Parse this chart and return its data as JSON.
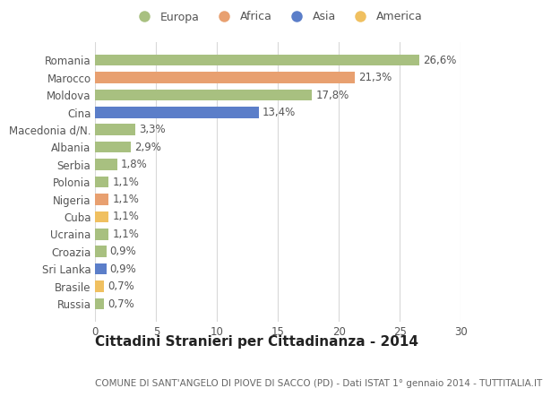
{
  "categories": [
    "Russia",
    "Brasile",
    "Sri Lanka",
    "Croazia",
    "Ucraina",
    "Cuba",
    "Nigeria",
    "Polonia",
    "Serbia",
    "Albania",
    "Macedonia d/N.",
    "Cina",
    "Moldova",
    "Marocco",
    "Romania"
  ],
  "values": [
    0.7,
    0.7,
    0.9,
    0.9,
    1.1,
    1.1,
    1.1,
    1.1,
    1.8,
    2.9,
    3.3,
    13.4,
    17.8,
    21.3,
    26.6
  ],
  "labels": [
    "0,7%",
    "0,7%",
    "0,9%",
    "0,9%",
    "1,1%",
    "1,1%",
    "1,1%",
    "1,1%",
    "1,8%",
    "2,9%",
    "3,3%",
    "13,4%",
    "17,8%",
    "21,3%",
    "26,6%"
  ],
  "colors": [
    "#a8c080",
    "#f0c060",
    "#5b7ec9",
    "#a8c080",
    "#a8c080",
    "#f0c060",
    "#e8a070",
    "#a8c080",
    "#a8c080",
    "#a8c080",
    "#a8c080",
    "#5b7ec9",
    "#a8c080",
    "#e8a070",
    "#a8c080"
  ],
  "continent": [
    "Europa",
    "America",
    "Asia",
    "Europa",
    "Europa",
    "America",
    "Africa",
    "Europa",
    "Europa",
    "Europa",
    "Europa",
    "Asia",
    "Europa",
    "Africa",
    "Europa"
  ],
  "legend_labels": [
    "Europa",
    "Africa",
    "Asia",
    "America"
  ],
  "legend_colors": [
    "#a8c080",
    "#e8a070",
    "#5b7ec9",
    "#f0c060"
  ],
  "title1": "Cittadini Stranieri per Cittadinanza - 2014",
  "title2": "COMUNE DI SANT'ANGELO DI PIOVE DI SACCO (PD) - Dati ISTAT 1° gennaio 2014 - TUTTITALIA.IT",
  "xlim": [
    0,
    30
  ],
  "xticks": [
    0,
    5,
    10,
    15,
    20,
    25,
    30
  ],
  "bg_color": "#ffffff",
  "grid_color": "#d8d8d8",
  "bar_height": 0.65,
  "label_fontsize": 8.5,
  "tick_fontsize": 8.5,
  "title1_fontsize": 11,
  "title2_fontsize": 7.5
}
